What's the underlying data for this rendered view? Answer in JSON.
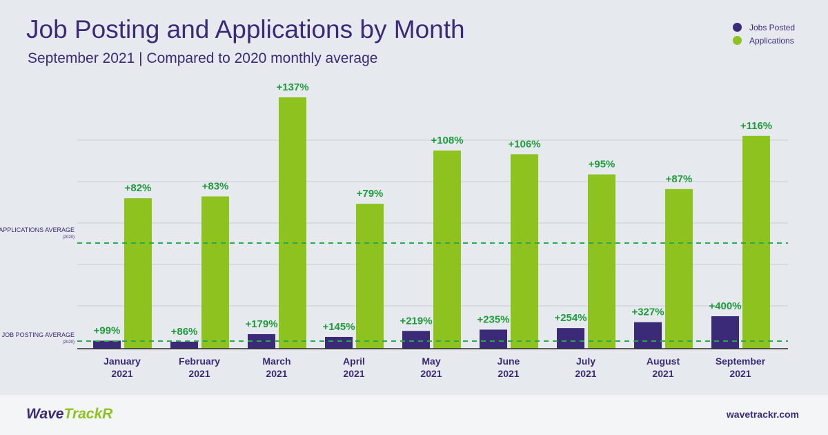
{
  "header": {
    "title": "Job Posting and Applications by Month",
    "subtitle": "September 2021 | Compared to 2020 monthly average"
  },
  "reference_lines": {
    "applications": {
      "label": "APPLICATIONS AVERAGE",
      "sub": "(2020)"
    },
    "job_posting": {
      "label": "JOB POSTING AVERAGE",
      "sub": "(2020)"
    }
  },
  "colors": {
    "jobs_posted": "#3b2a78",
    "applications": "#8dc21f",
    "label_green": "#1f9a3c",
    "avg_line": "#2aa84a",
    "grid": "#c9cdd4"
  },
  "footer": {
    "logo_part1": "Wave",
    "logo_part2": "TrackR",
    "url": "wavetrackr.com"
  },
  "chart_data": {
    "type": "bar",
    "title": "Job Posting and Applications by Month",
    "subtitle": "September 2021 | Compared to 2020 monthly average",
    "categories": [
      [
        "January",
        "2021"
      ],
      [
        "February",
        "2021"
      ],
      [
        "March",
        "2021"
      ],
      [
        "April",
        "2021"
      ],
      [
        "May",
        "2021"
      ],
      [
        "June",
        "2021"
      ],
      [
        "July",
        "2021"
      ],
      [
        "August",
        "2021"
      ],
      [
        "September",
        "2021"
      ]
    ],
    "series": [
      {
        "name": "Jobs Posted",
        "values": [
          99,
          86,
          179,
          145,
          219,
          235,
          254,
          327,
          400
        ],
        "labels": [
          "+99%",
          "+86%",
          "+179%",
          "+145%",
          "+219%",
          "+235%",
          "+254%",
          "+327%",
          "+400%"
        ]
      },
      {
        "name": "Applications",
        "values": [
          82,
          83,
          137,
          79,
          108,
          106,
          95,
          87,
          116
        ],
        "labels": [
          "+82%",
          "+83%",
          "+137%",
          "+79%",
          "+108%",
          "+106%",
          "+95%",
          "+87%",
          "+116%"
        ]
      }
    ],
    "legend_position": "top-right",
    "grid": true
  }
}
